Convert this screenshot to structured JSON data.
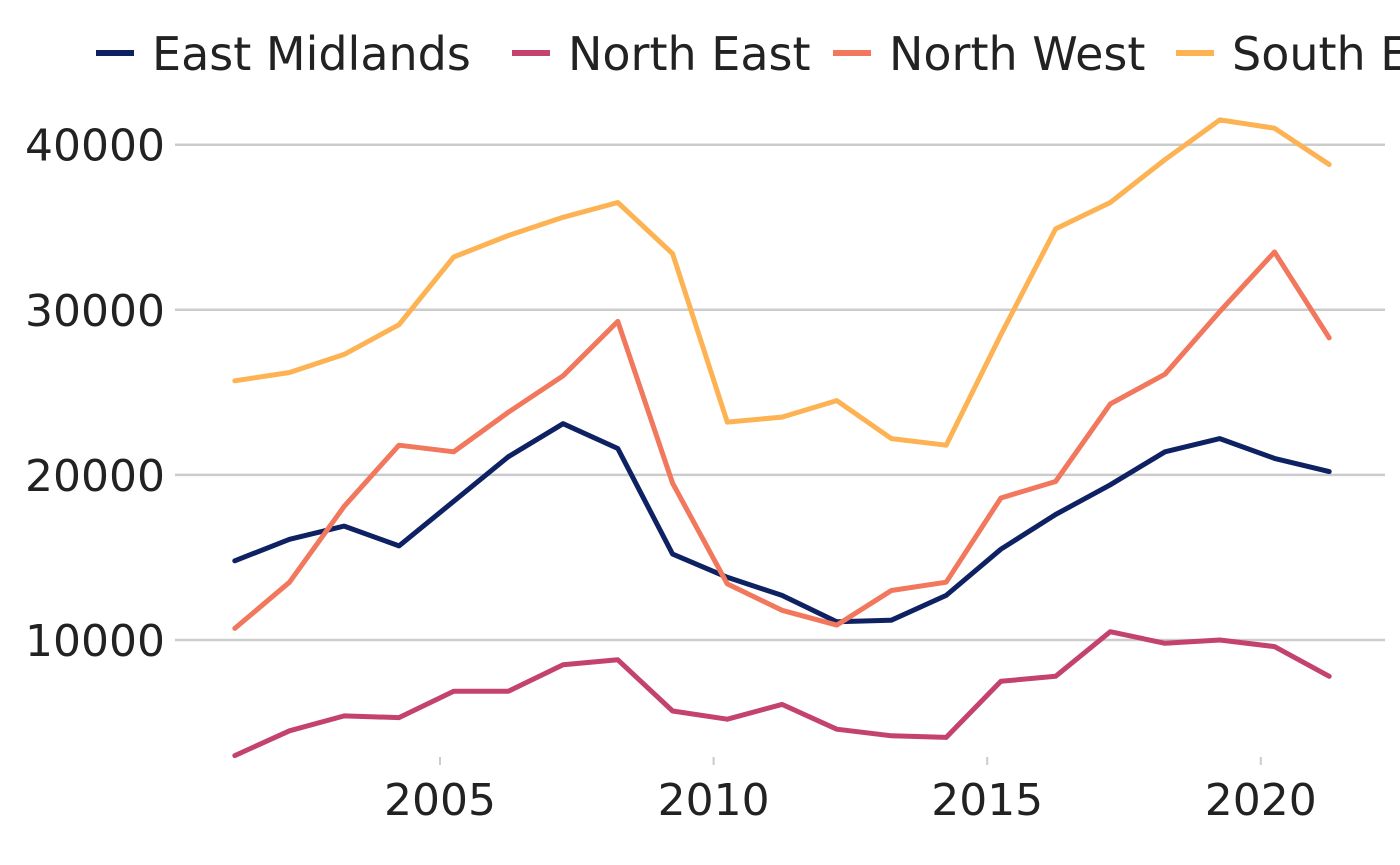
{
  "chart_data": {
    "type": "line",
    "title": "",
    "xlabel": "",
    "ylabel": "",
    "x": [
      2001.25,
      2002.25,
      2003.25,
      2004.25,
      2005.25,
      2006.25,
      2007.25,
      2008.25,
      2009.25,
      2010.25,
      2011.25,
      2012.25,
      2013.25,
      2014.25,
      2015.25,
      2016.25,
      2017.25,
      2018.25,
      2019.25,
      2020.25,
      2021.25
    ],
    "xticks": [
      "2005",
      "2010",
      "2015",
      "2020"
    ],
    "xtick_values": [
      2005,
      2010,
      2015,
      2020
    ],
    "xlim": [
      2001,
      2022
    ],
    "yticks": [
      "10000",
      "20000",
      "30000",
      "40000"
    ],
    "ytick_values": [
      10000,
      20000,
      30000,
      40000
    ],
    "ylim": [
      3000,
      41500
    ],
    "grid": "horizontal",
    "legend": "top",
    "series": [
      {
        "name": "East Midlands",
        "color": "#0e2163",
        "values": [
          14800,
          16100,
          16900,
          15700,
          18400,
          21100,
          23100,
          21600,
          15200,
          13800,
          12700,
          11100,
          11200,
          12700,
          15500,
          17600,
          19400,
          21400,
          22200,
          21000,
          20200
        ]
      },
      {
        "name": "North East",
        "color": "#c3426e",
        "values": [
          3000,
          4500,
          5400,
          5300,
          6900,
          6900,
          8500,
          8800,
          5700,
          5200,
          6100,
          4600,
          4200,
          4100,
          7500,
          7800,
          10500,
          9800,
          10000,
          9600,
          7800
        ]
      },
      {
        "name": "North West",
        "color": "#f1775d",
        "values": [
          10700,
          13500,
          18100,
          21800,
          21400,
          23800,
          26000,
          29300,
          19500,
          13400,
          11800,
          10900,
          13000,
          13500,
          18600,
          19600,
          24300,
          26100,
          29900,
          33500,
          28300
        ]
      },
      {
        "name": "South East",
        "color": "#fdb353",
        "values": [
          25700,
          26200,
          27300,
          29100,
          33200,
          34500,
          35600,
          36500,
          33400,
          23200,
          23500,
          24500,
          22200,
          21800,
          28500,
          34900,
          36500,
          39100,
          41500,
          41000,
          38800
        ]
      }
    ]
  }
}
